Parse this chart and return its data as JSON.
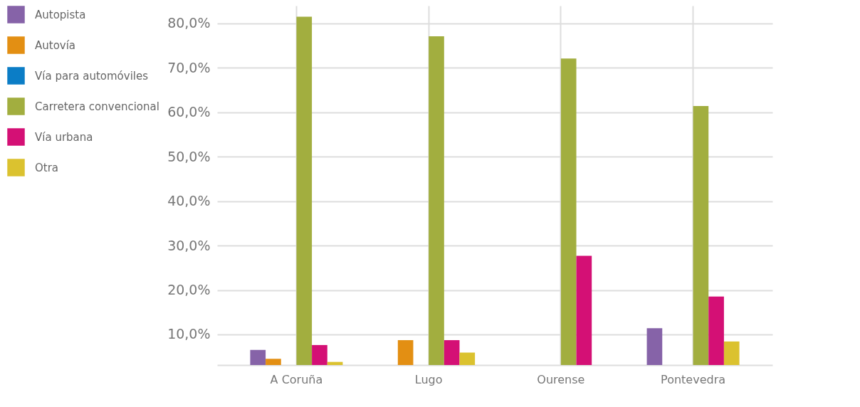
{
  "chart_data": {
    "type": "bar",
    "categories": [
      "A Coruña",
      "Lugo",
      "Ourense",
      "Pontevedra"
    ],
    "series": [
      {
        "name": "Autopista",
        "color": "#8663a8",
        "values": [
          6.5,
          null,
          null,
          11.4
        ]
      },
      {
        "name": "Autovía",
        "color": "#e38f13",
        "values": [
          4.5,
          8.7,
          null,
          null
        ]
      },
      {
        "name": "Vía para automóviles",
        "color": "#0b7dc6",
        "values": [
          null,
          null,
          null,
          null
        ]
      },
      {
        "name": "Carretera convencional",
        "color": "#a2ae3f",
        "values": [
          81.5,
          77.1,
          72.1,
          61.4
        ]
      },
      {
        "name": "Vía urbana",
        "color": "#d41075",
        "values": [
          7.6,
          8.7,
          27.7,
          18.5
        ]
      },
      {
        "name": "Otra",
        "color": "#dbc22f",
        "values": [
          3.8,
          5.9,
          null,
          8.4
        ]
      }
    ],
    "ylim": [
      3.1,
      84
    ],
    "yticks": [
      {
        "value": 10,
        "label": "10,0%"
      },
      {
        "value": 20,
        "label": "20,0%"
      },
      {
        "value": 30,
        "label": "30,0%"
      },
      {
        "value": 40,
        "label": "40,0%"
      },
      {
        "value": 50,
        "label": "50,0%"
      },
      {
        "value": 60,
        "label": "60,0%"
      },
      {
        "value": 70,
        "label": "70,0%"
      },
      {
        "value": 80,
        "label": "80,0%"
      }
    ],
    "grid": true,
    "legend": "left"
  }
}
